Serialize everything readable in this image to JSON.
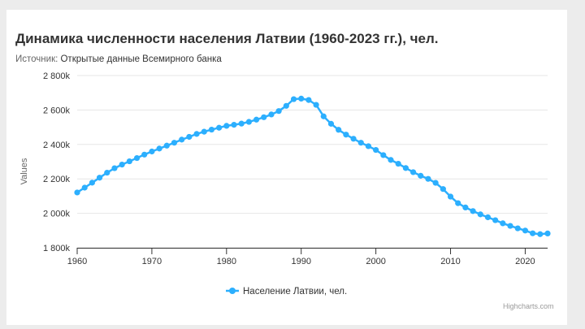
{
  "chart_data": {
    "type": "line",
    "title": "Динамика численности населения Латвии (1960-2023 гг.), чел.",
    "subtitle_prefix": "Источник: ",
    "subtitle_source": "Открытые данные Всемирного банка",
    "ylabel": "Values",
    "xlabel": "",
    "xlim": [
      1960,
      2023
    ],
    "ylim": [
      1800000,
      2800000
    ],
    "xticks": [
      1960,
      1970,
      1980,
      1990,
      2000,
      2010,
      2020
    ],
    "yticks": [
      1800000,
      2000000,
      2200000,
      2400000,
      2600000,
      2800000
    ],
    "ytick_labels": [
      "1 800k",
      "2 000k",
      "2 200k",
      "2 400k",
      "2 600k",
      "2 800k"
    ],
    "legend_position": "bottom-center",
    "grid": true,
    "credits": "Highcharts.com",
    "color": "#2caffe",
    "series": [
      {
        "name": "Население Латвии, чел.",
        "x": [
          1960,
          1961,
          1962,
          1963,
          1964,
          1965,
          1966,
          1967,
          1968,
          1969,
          1970,
          1971,
          1972,
          1973,
          1974,
          1975,
          1976,
          1977,
          1978,
          1979,
          1980,
          1981,
          1982,
          1983,
          1984,
          1985,
          1986,
          1987,
          1988,
          1989,
          1990,
          1991,
          1992,
          1993,
          1994,
          1995,
          1996,
          1997,
          1998,
          1999,
          2000,
          2001,
          2002,
          2003,
          2004,
          2005,
          2006,
          2007,
          2008,
          2009,
          2010,
          2011,
          2012,
          2013,
          2014,
          2015,
          2016,
          2017,
          2018,
          2019,
          2020,
          2021,
          2022,
          2023
        ],
        "values": [
          2121000,
          2149000,
          2178000,
          2207000,
          2236000,
          2262000,
          2283000,
          2302000,
          2321000,
          2341000,
          2359000,
          2376000,
          2393000,
          2410000,
          2428000,
          2444000,
          2461000,
          2474000,
          2486000,
          2497000,
          2508000,
          2514000,
          2521000,
          2531000,
          2544000,
          2558000,
          2574000,
          2594000,
          2624000,
          2663000,
          2666000,
          2658000,
          2630000,
          2563000,
          2520000,
          2485000,
          2457000,
          2433000,
          2410000,
          2390000,
          2368000,
          2338000,
          2310000,
          2288000,
          2263000,
          2239000,
          2218000,
          2200000,
          2177000,
          2141000,
          2097000,
          2059000,
          2034000,
          2013000,
          1994000,
          1977000,
          1960000,
          1942000,
          1927000,
          1913000,
          1900000,
          1884000,
          1879000,
          1883000
        ]
      }
    ]
  }
}
